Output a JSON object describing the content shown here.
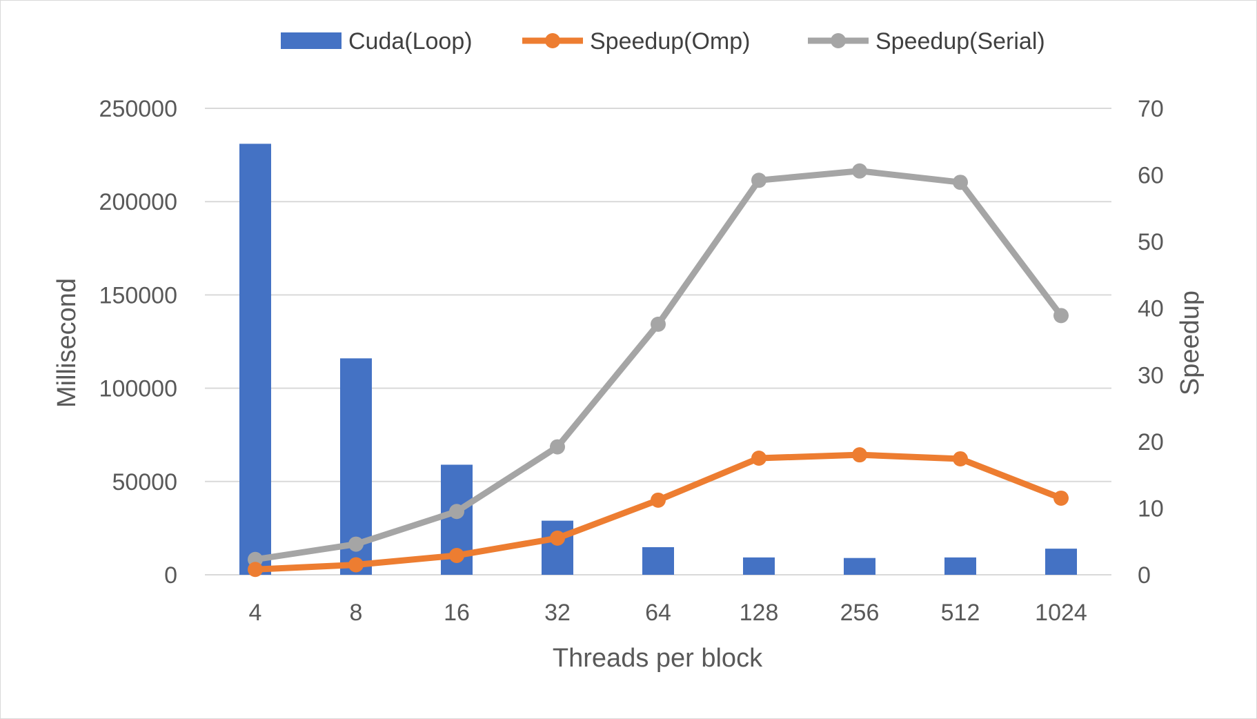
{
  "chart_data": {
    "type": "bar+line",
    "categories": [
      "4",
      "8",
      "16",
      "32",
      "64",
      "128",
      "256",
      "512",
      "1024"
    ],
    "xlabel": "Threads per block",
    "ylabel": "Millisecond",
    "y2label": "Speedup",
    "ylim": [
      0,
      250000
    ],
    "y2lim": [
      0,
      70
    ],
    "yticks": [
      "0",
      "50000",
      "100000",
      "150000",
      "200000",
      "250000"
    ],
    "y2ticks": [
      "0",
      "10",
      "20",
      "30",
      "40",
      "50",
      "60",
      "70"
    ],
    "grid": true,
    "legend_position": "top",
    "series": [
      {
        "name": "Cuda(Loop)",
        "kind": "bar",
        "axis": "left",
        "color": "#4472C4",
        "values": [
          231000,
          116000,
          59000,
          29000,
          14800,
          9300,
          9000,
          9300,
          14000
        ]
      },
      {
        "name": "Speedup(Omp)",
        "kind": "line",
        "axis": "right",
        "color": "#ED7D31",
        "values": [
          0.8,
          1.5,
          2.9,
          5.5,
          11.2,
          17.5,
          18.0,
          17.4,
          11.5
        ]
      },
      {
        "name": "Speedup(Serial)",
        "kind": "line",
        "axis": "right",
        "color": "#A5A5A5",
        "values": [
          2.3,
          4.6,
          9.5,
          19.2,
          37.6,
          59.2,
          60.6,
          58.9,
          38.9
        ]
      }
    ]
  }
}
